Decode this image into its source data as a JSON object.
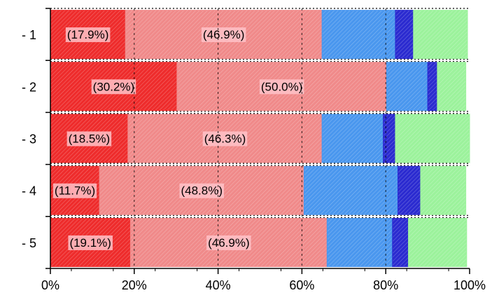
{
  "chart_data": {
    "type": "bar",
    "orientation": "horizontal",
    "stacked": "percent",
    "categories": [
      "- 1",
      "- 2",
      "- 3",
      "- 4",
      "- 5"
    ],
    "series": [
      {
        "values": [
          17.9,
          30.2,
          18.5,
          11.7,
          19.1
        ],
        "color": "#ee2c2c",
        "labels": [
          "(17.9%)",
          "(30.2%)",
          "(18.5%)",
          "(11.7%)",
          "(19.1%)"
        ]
      },
      {
        "values": [
          46.9,
          50.0,
          46.3,
          48.8,
          46.9
        ],
        "color": "#f08a8a",
        "labels": [
          "(46.9%)",
          "(50.0%)",
          "(46.3%)",
          "(48.8%)",
          "(46.9%)"
        ]
      },
      {
        "values": [
          17.5,
          9.8,
          14.6,
          22.4,
          15.6
        ],
        "color": "#4a97ee"
      },
      {
        "values": [
          4.3,
          2.3,
          2.9,
          5.4,
          3.8
        ],
        "color": "#2b2bd0"
      },
      {
        "values": [
          12.9,
          6.8,
          17.7,
          10.8,
          13.9
        ],
        "color": "#9cf29c"
      }
    ],
    "x_ticks": [
      "0%",
      "20%",
      "40%",
      "60%",
      "80%",
      "100%"
    ],
    "xlim": [
      0,
      100
    ],
    "grid": true
  }
}
